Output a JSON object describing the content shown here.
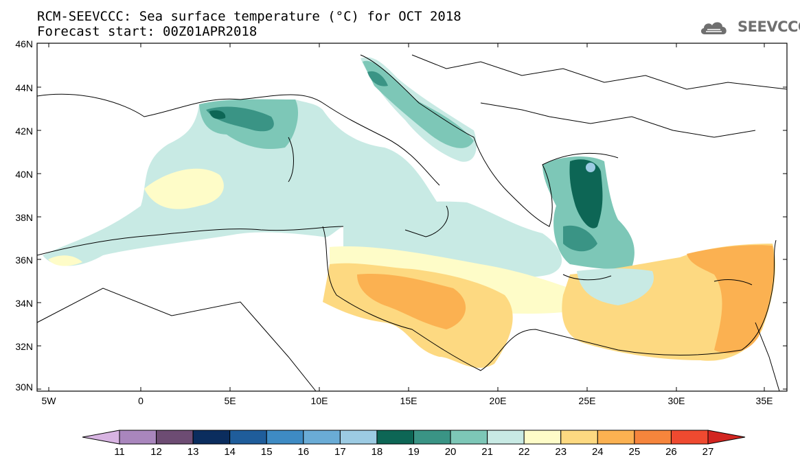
{
  "title_line1": "RCM-SEEVCCC: Sea surface temperature (°C) for OCT 2018",
  "title_line2": "Forecast start: 00Z01APR2018",
  "logo_text": "SEEVCCC",
  "logo_icon": "cloud-icon",
  "map": {
    "lon_range": [
      -5.5,
      36.5
    ],
    "lat_range": [
      30,
      46
    ],
    "lat_labels": [
      "46N",
      "44N",
      "42N",
      "40N",
      "38N",
      "36N",
      "34N",
      "32N",
      "30N"
    ],
    "lon_labels": [
      "5W",
      "0",
      "5E",
      "10E",
      "15E",
      "20E",
      "25E",
      "30E",
      "35E"
    ]
  },
  "colorbar": {
    "labels": [
      "11",
      "12",
      "13",
      "14",
      "15",
      "16",
      "17",
      "18",
      "19",
      "20",
      "21",
      "22",
      "23",
      "24",
      "25",
      "26",
      "27"
    ],
    "colors": [
      "#d8b4e2",
      "#a986bd",
      "#6d4c73",
      "#0b2d5e",
      "#1f5d9b",
      "#3e8bc4",
      "#6aacd6",
      "#9ccbe3",
      "#0d6655",
      "#3a9485",
      "#7dc7b7",
      "#c8eae4",
      "#fefcc8",
      "#fdd981",
      "#fbb151",
      "#f6853c",
      "#ef4a30",
      "#d22520"
    ]
  }
}
